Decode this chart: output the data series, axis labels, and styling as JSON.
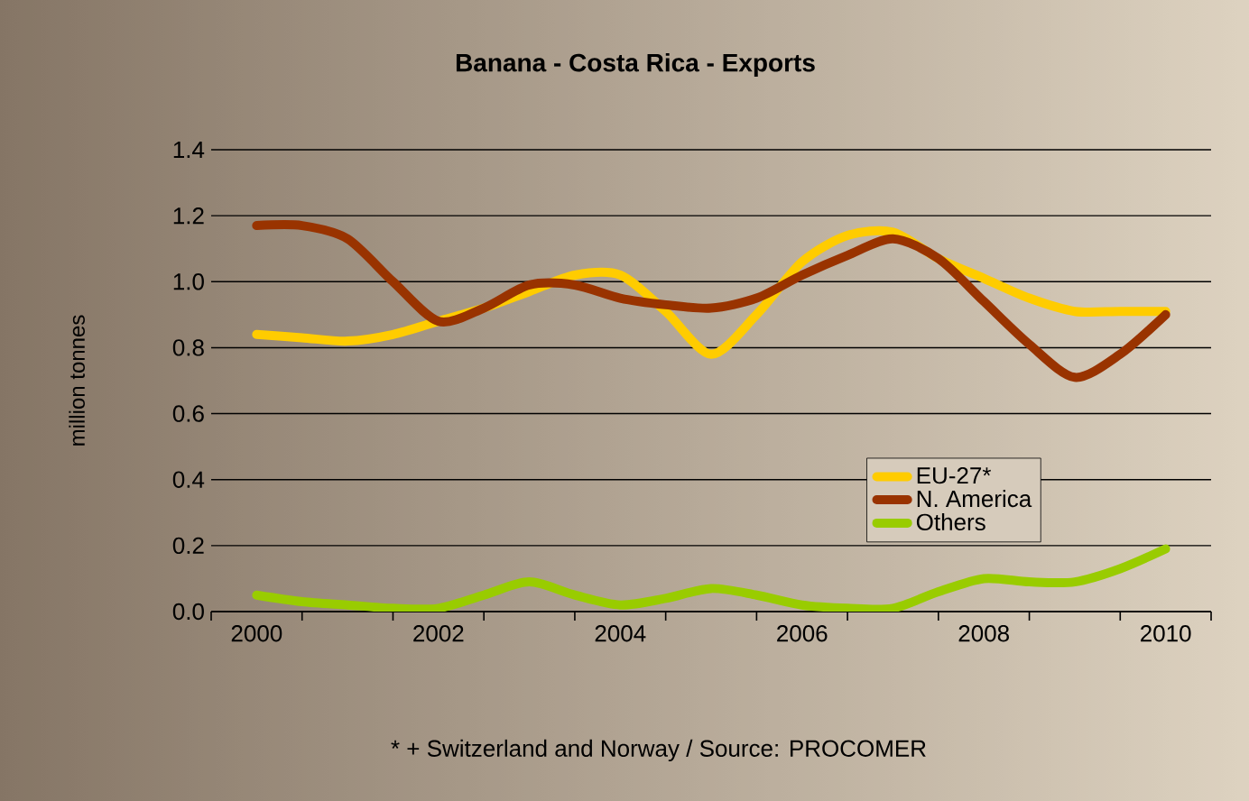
{
  "chart_data": {
    "type": "line",
    "title": "Banana - Costa Rica - Exports",
    "ylabel": "million tonnes",
    "annotations": [
      "* + Switzerland and Norway / Source: PROCOMER"
    ],
    "x": [
      2000,
      2000.5,
      2001,
      2001.5,
      2002,
      2002.5,
      2003,
      2003.5,
      2004,
      2004.5,
      2005,
      2005.5,
      2006,
      2006.5,
      2007,
      2007.5,
      2008,
      2008.5,
      2009,
      2009.5,
      2010
    ],
    "series": [
      {
        "name": "EU-27*",
        "color": "#ffcc00",
        "values": [
          0.84,
          0.83,
          0.82,
          0.84,
          0.88,
          0.92,
          0.97,
          1.02,
          1.02,
          0.91,
          0.78,
          0.9,
          1.06,
          1.14,
          1.15,
          1.07,
          1.01,
          0.95,
          0.91,
          0.91,
          0.91
        ]
      },
      {
        "name": "N. America",
        "color": "#993300",
        "values": [
          1.17,
          1.17,
          1.13,
          1.0,
          0.88,
          0.92,
          0.99,
          0.99,
          0.95,
          0.93,
          0.92,
          0.95,
          1.02,
          1.08,
          1.13,
          1.07,
          0.94,
          0.81,
          0.71,
          0.78,
          0.9
        ]
      },
      {
        "name": "Others",
        "color": "#99cc00",
        "values": [
          0.05,
          0.03,
          0.02,
          0.01,
          0.01,
          0.05,
          0.09,
          0.05,
          0.02,
          0.04,
          0.07,
          0.05,
          0.02,
          0.01,
          0.01,
          0.06,
          0.1,
          0.09,
          0.09,
          0.13,
          0.19
        ]
      }
    ],
    "xlim": [
      1999.5,
      2010.5
    ],
    "xticks": [
      2000,
      2002,
      2004,
      2006,
      2008,
      2010,
      {
        "value": 1999.5,
        "label": null
      },
      {
        "value": 2000.5,
        "label": null
      },
      {
        "value": 2001.5,
        "label": null
      },
      {
        "value": 2002.5,
        "label": null
      },
      {
        "value": 2003.5,
        "label": null
      },
      {
        "value": 2004.5,
        "label": null
      },
      {
        "value": 2005.5,
        "label": null
      },
      {
        "value": 2006.5,
        "label": null
      },
      {
        "value": 2007.5,
        "label": null
      },
      {
        "value": 2008.5,
        "label": null
      },
      {
        "value": 2009.5,
        "label": null
      },
      {
        "value": 2010.5,
        "label": null
      }
    ],
    "ylim": [
      0,
      1.4
    ],
    "yticks": [
      {
        "value": 0,
        "label": "0.0"
      },
      0.2,
      0.4,
      0.6,
      0.8,
      {
        "value": 1,
        "label": "1.0"
      },
      1.2,
      1.4
    ],
    "grid": "y",
    "legend": "right",
    "marker": "none",
    "line_style": "solid"
  }
}
